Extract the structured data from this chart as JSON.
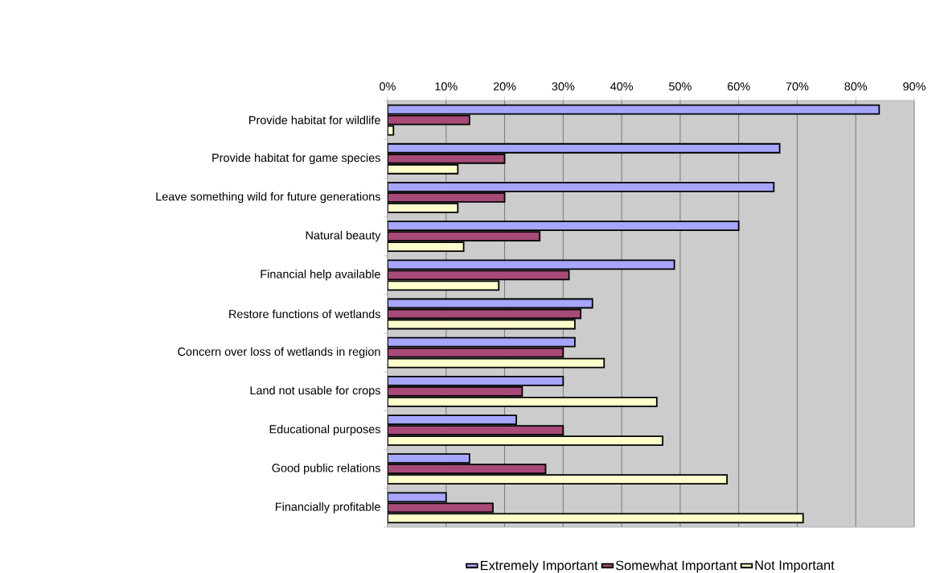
{
  "chart_data": {
    "type": "bar",
    "orientation": "horizontal",
    "categories": [
      "Provide habitat for wildlife",
      "Provide habitat for game species",
      "Leave something wild for future generations",
      "Natural  beauty",
      "Financial help available",
      "Restore functions of wetlands",
      "Concern over loss of wetlands in region",
      "Land not usable for crops",
      "Educational  purposes",
      "Good public relations",
      "Financially profitable"
    ],
    "series": [
      {
        "name": "Extremely Important",
        "color": "#a6a6ff",
        "values": [
          84,
          67,
          66,
          60,
          49,
          35,
          32,
          30,
          22,
          14,
          10
        ]
      },
      {
        "name": "Somewhat Important",
        "color": "#a84a78",
        "values": [
          14,
          20,
          20,
          26,
          31,
          33,
          30,
          23,
          30,
          27,
          18
        ]
      },
      {
        "name": "Not Important",
        "color": "#ffffcc",
        "values": [
          1,
          12,
          12,
          13,
          19,
          32,
          37,
          46,
          47,
          58,
          71
        ]
      }
    ],
    "xlim": [
      0,
      90
    ],
    "xticks": [
      {
        "value": 0,
        "label": "0%"
      },
      {
        "value": 10,
        "label": "10%"
      },
      {
        "value": 20,
        "label": "20%"
      },
      {
        "value": 30,
        "label": "30%"
      },
      {
        "value": 40,
        "label": "40%"
      },
      {
        "value": 50,
        "label": "50%"
      },
      {
        "value": 60,
        "label": "60%"
      },
      {
        "value": 70,
        "label": "70%"
      },
      {
        "value": 80,
        "label": "80%"
      },
      {
        "value": 90,
        "label": "90%"
      }
    ],
    "grid": "x",
    "legend": "bottom"
  }
}
